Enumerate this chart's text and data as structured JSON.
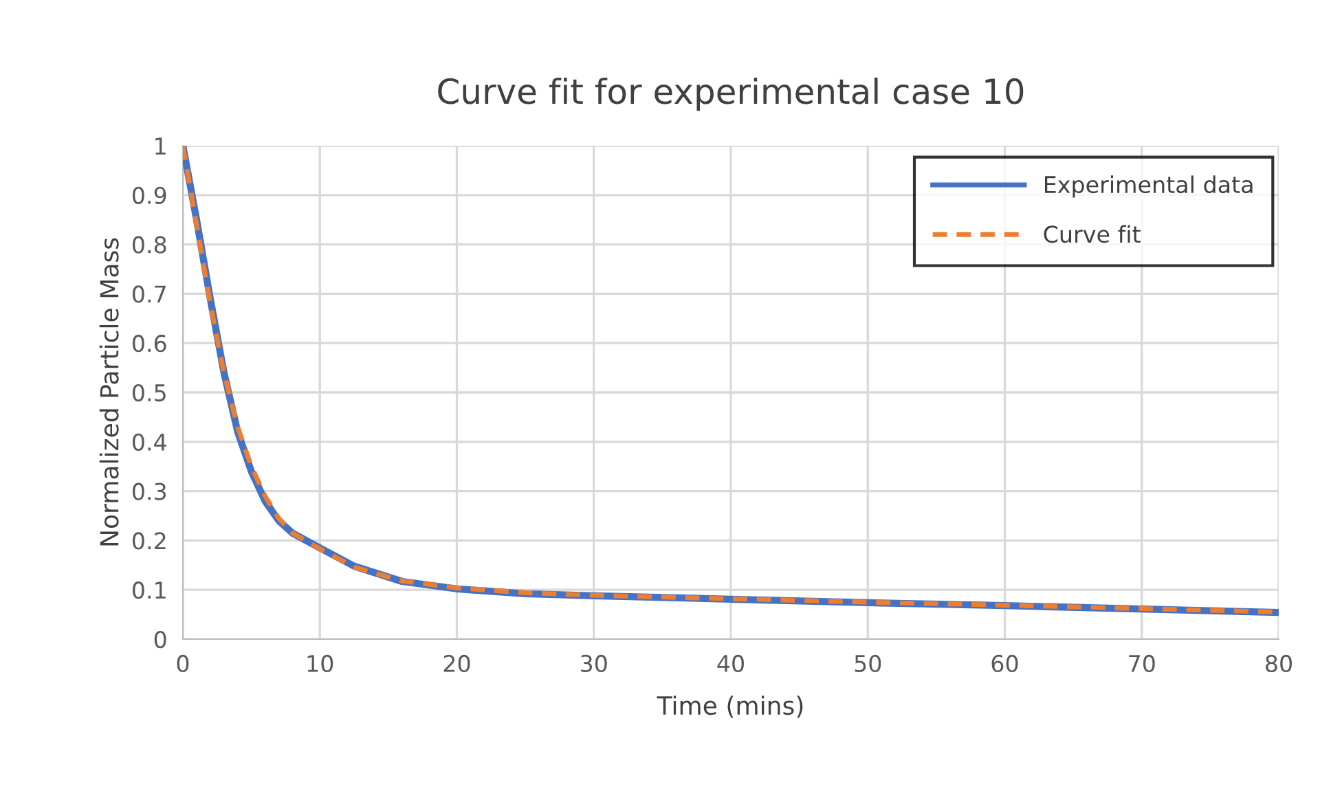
{
  "chart_data": {
    "type": "line",
    "title": "Curve fit for experimental case 10",
    "xlabel": "Time (mins)",
    "ylabel": "Normalized Particle Mass",
    "xlim": [
      0,
      80
    ],
    "xticks": [
      0,
      10,
      20,
      30,
      40,
      50,
      60,
      70,
      80
    ],
    "ylim": [
      0,
      1
    ],
    "yticks": [
      0,
      0.1,
      0.2,
      0.3,
      0.4,
      0.5,
      0.6,
      0.7,
      0.8,
      0.9,
      1
    ],
    "grid": true,
    "legend": "top right",
    "series": [
      {
        "name": "Experimental data",
        "color": "#4472c4",
        "line_style": "solid",
        "x": [
          0,
          1,
          2,
          3,
          4,
          5,
          6,
          7,
          8,
          10,
          12.5,
          16,
          20,
          25,
          30,
          40,
          50,
          60,
          70,
          80
        ],
        "values": [
          1.0,
          0.85,
          0.69,
          0.54,
          0.42,
          0.34,
          0.28,
          0.24,
          0.215,
          0.185,
          0.148,
          0.117,
          0.102,
          0.092,
          0.088,
          0.081,
          0.074,
          0.068,
          0.061,
          0.054
        ]
      },
      {
        "name": "Curve fit",
        "color": "#ed7d31",
        "line_style": "dashed",
        "x": [
          0,
          1,
          2,
          3,
          4,
          5,
          6,
          7,
          8,
          10,
          12.5,
          16,
          20,
          25,
          30,
          40,
          50,
          60,
          70,
          80
        ],
        "values": [
          1.0,
          0.84,
          0.68,
          0.54,
          0.43,
          0.35,
          0.29,
          0.245,
          0.215,
          0.183,
          0.146,
          0.118,
          0.104,
          0.094,
          0.089,
          0.082,
          0.075,
          0.069,
          0.062,
          0.055
        ]
      }
    ]
  }
}
